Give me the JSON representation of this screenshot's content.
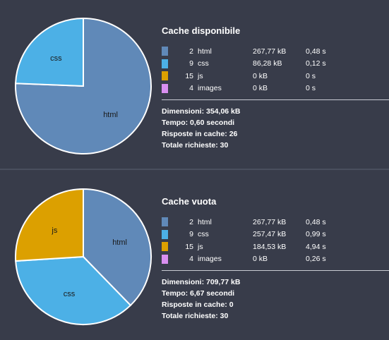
{
  "colors": {
    "html": "#6089b8",
    "css": "#4cb0e6",
    "js": "#dca000",
    "images": "#d98ff0",
    "background": "#383c4a"
  },
  "panels": [
    {
      "title": "Cache disponibile",
      "rows": [
        {
          "count": "2",
          "type": "html",
          "size": "267,77 kB",
          "time": "0,48 s",
          "color": "#6089b8"
        },
        {
          "count": "9",
          "type": "css",
          "size": "86,28 kB",
          "time": "0,12 s",
          "color": "#4cb0e6"
        },
        {
          "count": "15",
          "type": "js",
          "size": "0 kB",
          "time": "0 s",
          "color": "#dca000"
        },
        {
          "count": "4",
          "type": "images",
          "size": "0 kB",
          "time": "0 s",
          "color": "#d98ff0"
        }
      ],
      "summary": {
        "size": "Dimensioni: 354,06 kB",
        "time": "Tempo: 0,60 secondi",
        "cached": "Risposte in cache: 26",
        "total": "Totale richieste: 30"
      },
      "pie": [
        {
          "label": "html",
          "value": 267.77,
          "color": "#6089b8"
        },
        {
          "label": "css",
          "value": 86.28,
          "color": "#4cb0e6"
        }
      ]
    },
    {
      "title": "Cache vuota",
      "rows": [
        {
          "count": "2",
          "type": "html",
          "size": "267,77 kB",
          "time": "0,48 s",
          "color": "#6089b8"
        },
        {
          "count": "9",
          "type": "css",
          "size": "257,47 kB",
          "time": "0,99 s",
          "color": "#4cb0e6"
        },
        {
          "count": "15",
          "type": "js",
          "size": "184,53 kB",
          "time": "4,94 s",
          "color": "#dca000"
        },
        {
          "count": "4",
          "type": "images",
          "size": "0 kB",
          "time": "0,26 s",
          "color": "#d98ff0"
        }
      ],
      "summary": {
        "size": "Dimensioni: 709,77 kB",
        "time": "Tempo: 6,67 secondi",
        "cached": "Risposte in cache: 0",
        "total": "Totale richieste: 30"
      },
      "pie": [
        {
          "label": "html",
          "value": 267.77,
          "color": "#6089b8"
        },
        {
          "label": "css",
          "value": 257.47,
          "color": "#4cb0e6"
        },
        {
          "label": "js",
          "value": 184.53,
          "color": "#dca000"
        }
      ]
    }
  ]
}
